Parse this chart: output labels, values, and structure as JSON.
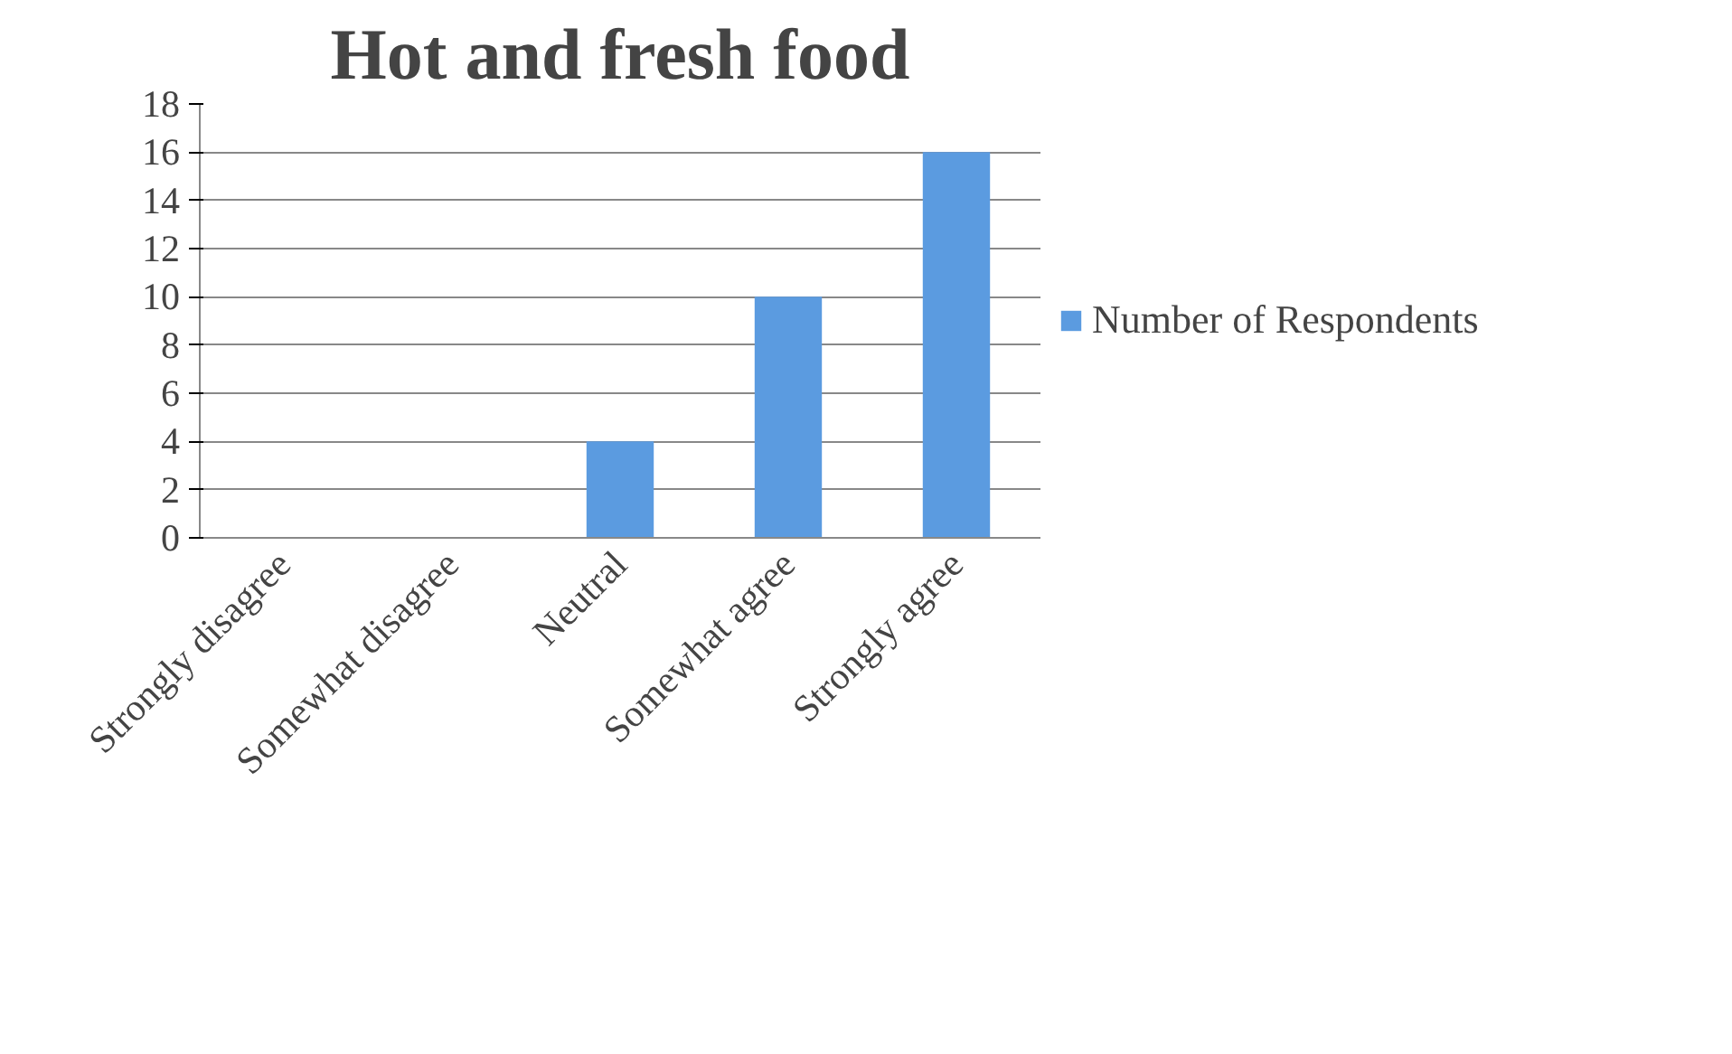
{
  "chart_data": {
    "type": "bar",
    "title": "Hot and fresh food",
    "categories": [
      "Strongly disagree",
      "Somewhat disagree",
      "Neutral",
      "Somewhat agree",
      "Strongly agree"
    ],
    "series": [
      {
        "name": "Number of Respondents",
        "color": "#5b9be0",
        "values": [
          0,
          0,
          4,
          10,
          16
        ]
      }
    ],
    "ylim": [
      0,
      18
    ],
    "yticks": [
      0,
      2,
      4,
      6,
      8,
      10,
      12,
      14,
      16,
      18
    ],
    "grid": "y",
    "legend": "right"
  }
}
